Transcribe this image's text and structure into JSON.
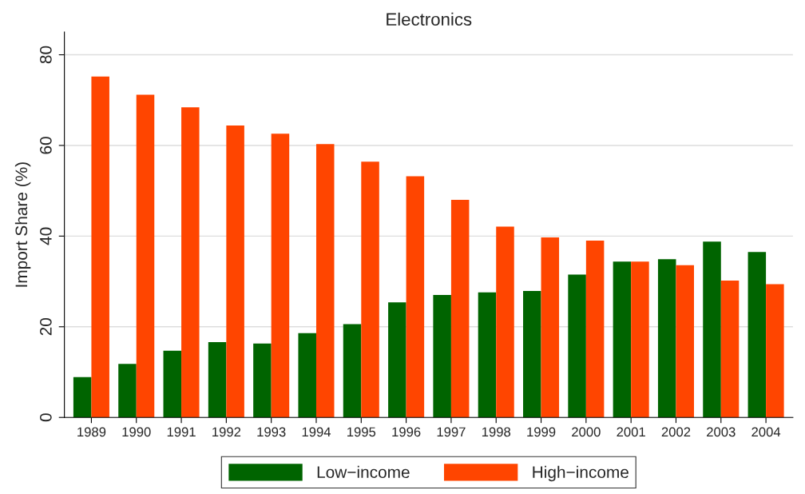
{
  "chart_data": {
    "type": "bar",
    "title": "Electronics",
    "ylabel": "Import Share (%)",
    "categories": [
      "1989",
      "1990",
      "1991",
      "1992",
      "1993",
      "1994",
      "1995",
      "1996",
      "1997",
      "1998",
      "1999",
      "2000",
      "2001",
      "2002",
      "2003",
      "2004"
    ],
    "series": [
      {
        "name": "Low−income",
        "color": "#006400",
        "values": [
          8.9,
          11.8,
          14.7,
          16.6,
          16.3,
          18.6,
          20.6,
          25.4,
          27.0,
          27.6,
          27.9,
          31.5,
          34.4,
          34.9,
          38.8,
          36.5
        ]
      },
      {
        "name": "High−income",
        "color": "#ff4500",
        "values": [
          75.2,
          71.2,
          68.4,
          64.4,
          62.6,
          60.3,
          56.4,
          53.2,
          48.0,
          42.1,
          39.7,
          39.0,
          34.4,
          33.6,
          30.2,
          29.4
        ]
      }
    ],
    "ylim": [
      0,
      85
    ],
    "yticks": [
      0,
      20,
      40,
      60,
      80
    ],
    "grid": "y",
    "legend": "bottom"
  }
}
